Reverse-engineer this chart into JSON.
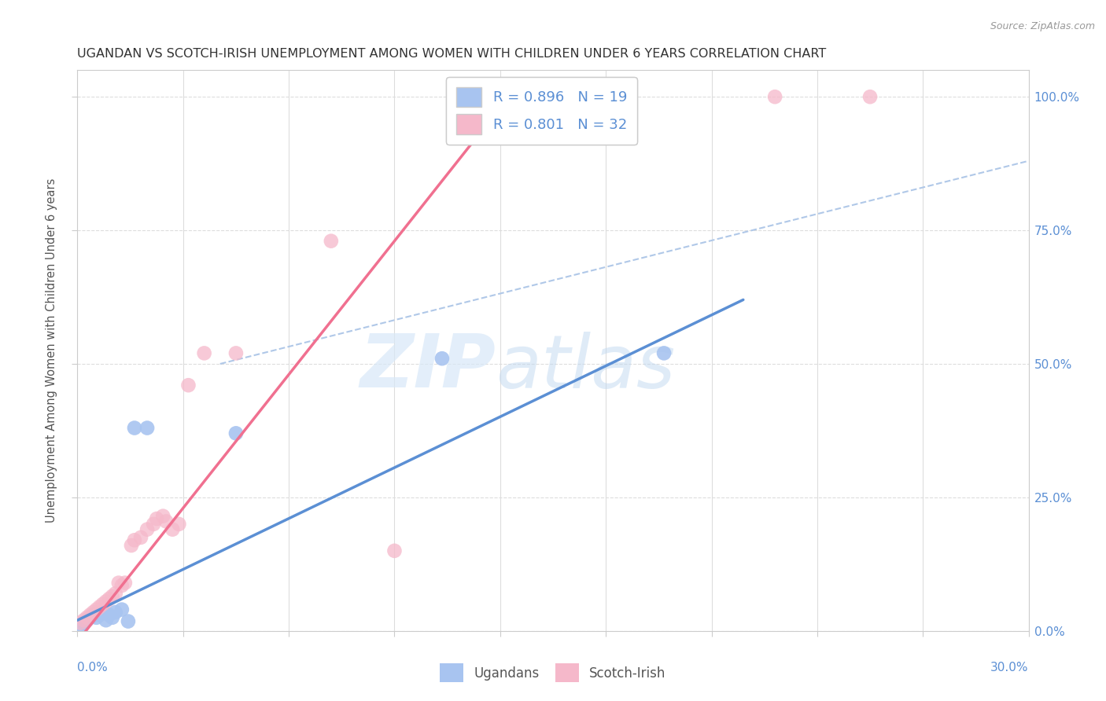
{
  "title": "UGANDAN VS SCOTCH-IRISH UNEMPLOYMENT AMONG WOMEN WITH CHILDREN UNDER 6 YEARS CORRELATION CHART",
  "source": "Source: ZipAtlas.com",
  "ylabel": "Unemployment Among Women with Children Under 6 years",
  "xmin": 0.0,
  "xmax": 0.3,
  "ymin": 0.0,
  "ymax": 1.05,
  "watermark_zip": "ZIP",
  "watermark_atlas": "atlas",
  "legend_r1": "R = 0.896",
  "legend_n1": "N = 19",
  "legend_r2": "R = 0.801",
  "legend_n2": "N = 32",
  "ugandan_color": "#a8c4f0",
  "scotchirish_color": "#f5b8ca",
  "ugandan_line_color": "#5b8fd4",
  "scotchirish_line_color": "#f07090",
  "ref_line_color": "#b0c8e8",
  "background_color": "#ffffff",
  "grid_color": "#dddddd",
  "right_axis_color": "#5b8fd4",
  "ytick_labels": [
    "0.0%",
    "25.0%",
    "50.0%",
    "75.0%",
    "100.0%"
  ],
  "ytick_vals": [
    0.0,
    0.25,
    0.5,
    0.75,
    1.0
  ],
  "ugandans_x": [
    0.001,
    0.002,
    0.003,
    0.004,
    0.005,
    0.006,
    0.007,
    0.008,
    0.009,
    0.01,
    0.011,
    0.012,
    0.014,
    0.016,
    0.018,
    0.022,
    0.05,
    0.115,
    0.185
  ],
  "ugandans_y": [
    0.01,
    0.015,
    0.02,
    0.025,
    0.03,
    0.025,
    0.03,
    0.035,
    0.02,
    0.03,
    0.025,
    0.035,
    0.04,
    0.018,
    0.38,
    0.38,
    0.37,
    0.51,
    0.52
  ],
  "scotchirish_x": [
    0.001,
    0.002,
    0.003,
    0.004,
    0.005,
    0.006,
    0.007,
    0.008,
    0.009,
    0.01,
    0.011,
    0.012,
    0.013,
    0.014,
    0.015,
    0.017,
    0.018,
    0.02,
    0.022,
    0.024,
    0.025,
    0.027,
    0.028,
    0.03,
    0.032,
    0.035,
    0.04,
    0.05,
    0.08,
    0.1,
    0.22,
    0.25
  ],
  "scotchirish_y": [
    0.015,
    0.02,
    0.025,
    0.03,
    0.035,
    0.04,
    0.045,
    0.05,
    0.055,
    0.06,
    0.065,
    0.07,
    0.09,
    0.085,
    0.09,
    0.16,
    0.17,
    0.175,
    0.19,
    0.2,
    0.21,
    0.215,
    0.205,
    0.19,
    0.2,
    0.46,
    0.52,
    0.52,
    0.73,
    0.15,
    1.0,
    1.0
  ],
  "ugandan_line_x": [
    0.0,
    0.21
  ],
  "ugandan_line_y": [
    0.02,
    0.62
  ],
  "scotchirish_line_x": [
    0.0,
    0.14
  ],
  "scotchirish_line_y": [
    -0.02,
    1.03
  ],
  "ref_line_x": [
    0.045,
    0.3
  ],
  "ref_line_y": [
    0.5,
    0.88
  ]
}
